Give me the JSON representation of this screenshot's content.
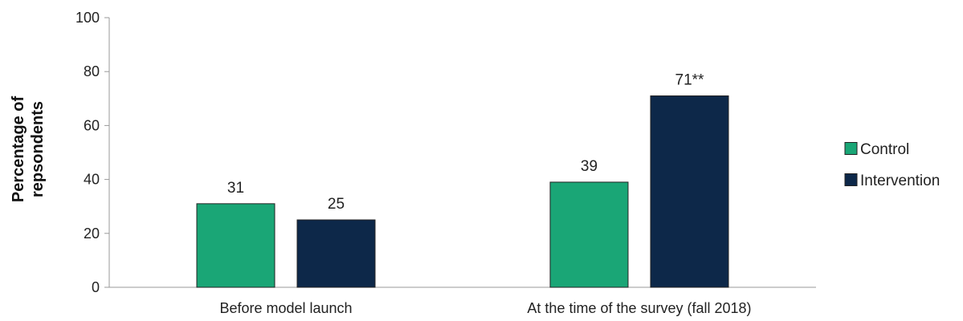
{
  "chart_data": {
    "type": "bar",
    "categories": [
      "Before model launch",
      "At the time of the survey (fall 2018)"
    ],
    "series": [
      {
        "name": "Control",
        "values": [
          31,
          39
        ],
        "labels": [
          "31",
          "39"
        ],
        "color": "#1aa676"
      },
      {
        "name": "Intervention",
        "values": [
          25,
          71
        ],
        "labels": [
          "25",
          "71**"
        ],
        "color": "#0d2849"
      }
    ],
    "title": "",
    "xlabel": "",
    "ylabel_lines": [
      "Percentage of",
      "repsondents"
    ],
    "ylim": [
      0,
      100
    ],
    "yticks": [
      0,
      20,
      40,
      60,
      80,
      100
    ],
    "grid": false,
    "legend_position": "right",
    "bar_border_color": "#222222",
    "axis_color": "#999999"
  }
}
